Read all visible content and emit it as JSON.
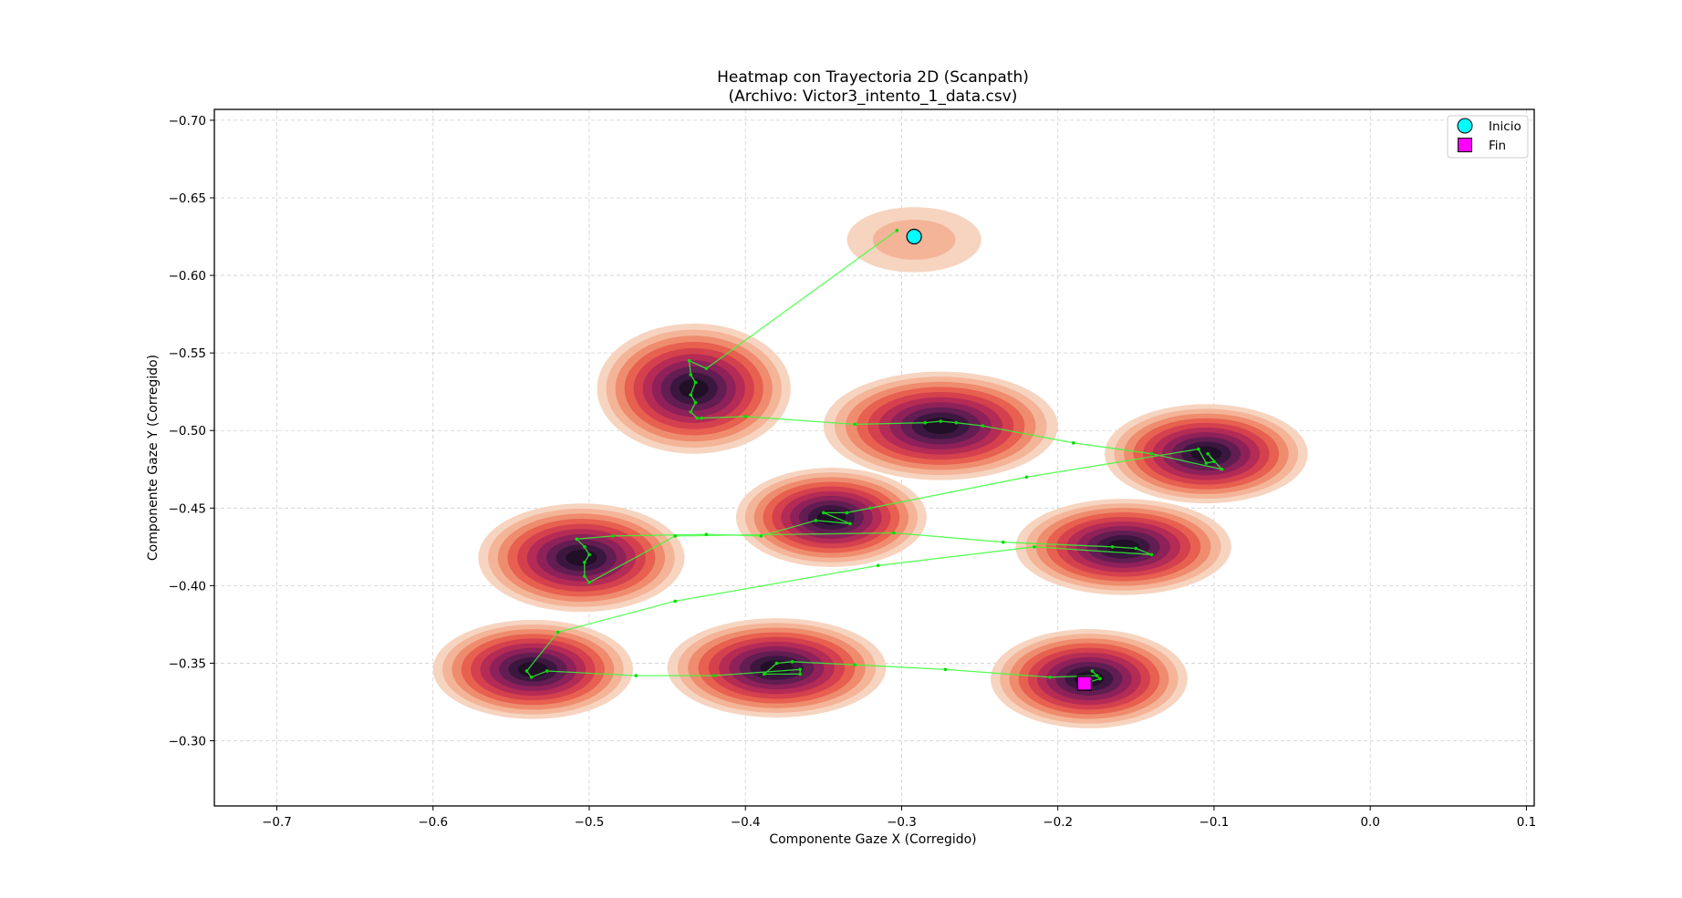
{
  "chart_data": {
    "type": "heatmap",
    "title": "Heatmap con Trayectoria 2D (Scanpath)",
    "subtitle": "(Archivo: Victor3_intento_1_data.csv)",
    "xlabel": "Componente Gaze X (Corregido)",
    "ylabel": "Componente Gaze Y (Corregido)",
    "xlim": [
      -0.74,
      0.105
    ],
    "ylim": [
      -0.258,
      -0.707
    ],
    "y_inverted": true,
    "grid": true,
    "x_ticks": [
      -0.7,
      -0.6,
      -0.5,
      -0.4,
      -0.3,
      -0.2,
      -0.1,
      0.0,
      0.1
    ],
    "x_tick_labels": [
      "−0.7",
      "−0.6",
      "−0.5",
      "−0.4",
      "−0.3",
      "−0.2",
      "−0.1",
      "0.0",
      "0.1"
    ],
    "y_ticks": [
      -0.7,
      -0.65,
      -0.6,
      -0.55,
      -0.5,
      -0.45,
      -0.4,
      -0.35,
      -0.3
    ],
    "y_tick_labels": [
      "−0.70",
      "−0.65",
      "−0.60",
      "−0.55",
      "−0.50",
      "−0.45",
      "−0.40",
      "−0.35",
      "−0.30"
    ],
    "legend": {
      "placement": "upper right",
      "entries": [
        {
          "label": "Inicio",
          "marker": "circle",
          "color": "#00ffff"
        },
        {
          "label": "Fin",
          "marker": "square",
          "color": "#ff00ff"
        }
      ]
    },
    "density_colors": [
      "#f6d4c0",
      "#f4b498",
      "#ef8c6e",
      "#e8604f",
      "#d5404e",
      "#b42b55",
      "#8e2159",
      "#621d52",
      "#3b1740",
      "#200f27"
    ],
    "fixation_clusters": [
      {
        "x": -0.292,
        "y": -0.623,
        "rx": 0.043,
        "ry": 0.021,
        "levels": 2
      },
      {
        "x": -0.433,
        "y": -0.527,
        "rx": 0.062,
        "ry": 0.042,
        "levels": 10
      },
      {
        "x": -0.275,
        "y": -0.503,
        "rx": 0.075,
        "ry": 0.035,
        "levels": 10
      },
      {
        "x": -0.105,
        "y": -0.485,
        "rx": 0.065,
        "ry": 0.032,
        "levels": 10
      },
      {
        "x": -0.345,
        "y": -0.444,
        "rx": 0.061,
        "ry": 0.032,
        "levels": 10
      },
      {
        "x": -0.158,
        "y": -0.425,
        "rx": 0.069,
        "ry": 0.031,
        "levels": 10
      },
      {
        "x": -0.505,
        "y": -0.418,
        "rx": 0.066,
        "ry": 0.035,
        "levels": 10
      },
      {
        "x": -0.536,
        "y": -0.346,
        "rx": 0.064,
        "ry": 0.032,
        "levels": 10
      },
      {
        "x": -0.38,
        "y": -0.347,
        "rx": 0.07,
        "ry": 0.032,
        "levels": 10
      },
      {
        "x": -0.18,
        "y": -0.34,
        "rx": 0.063,
        "ry": 0.032,
        "levels": 10
      }
    ],
    "scanpath": {
      "color": "#33ff33",
      "points": [
        [
          -0.303,
          -0.629
        ],
        [
          -0.425,
          -0.54
        ],
        [
          -0.436,
          -0.545
        ],
        [
          -0.435,
          -0.536
        ],
        [
          -0.432,
          -0.531
        ],
        [
          -0.435,
          -0.523
        ],
        [
          -0.432,
          -0.518
        ],
        [
          -0.435,
          -0.512
        ],
        [
          -0.431,
          -0.508
        ],
        [
          -0.428,
          -0.508
        ],
        [
          -0.4,
          -0.509
        ],
        [
          -0.33,
          -0.504
        ],
        [
          -0.285,
          -0.505
        ],
        [
          -0.275,
          -0.506
        ],
        [
          -0.265,
          -0.505
        ],
        [
          -0.248,
          -0.503
        ],
        [
          -0.19,
          -0.492
        ],
        [
          -0.14,
          -0.485
        ],
        [
          -0.095,
          -0.475
        ],
        [
          -0.104,
          -0.485
        ],
        [
          -0.1,
          -0.48
        ],
        [
          -0.105,
          -0.479
        ],
        [
          -0.11,
          -0.488
        ],
        [
          -0.22,
          -0.47
        ],
        [
          -0.32,
          -0.45
        ],
        [
          -0.335,
          -0.447
        ],
        [
          -0.35,
          -0.447
        ],
        [
          -0.333,
          -0.44
        ],
        [
          -0.355,
          -0.442
        ],
        [
          -0.39,
          -0.432
        ],
        [
          -0.425,
          -0.433
        ],
        [
          -0.485,
          -0.432
        ],
        [
          -0.508,
          -0.43
        ],
        [
          -0.503,
          -0.425
        ],
        [
          -0.5,
          -0.42
        ],
        [
          -0.503,
          -0.415
        ],
        [
          -0.503,
          -0.406
        ],
        [
          -0.5,
          -0.402
        ],
        [
          -0.445,
          -0.432
        ],
        [
          -0.305,
          -0.434
        ],
        [
          -0.235,
          -0.428
        ],
        [
          -0.165,
          -0.425
        ],
        [
          -0.15,
          -0.424
        ],
        [
          -0.14,
          -0.42
        ],
        [
          -0.215,
          -0.425
        ],
        [
          -0.315,
          -0.413
        ],
        [
          -0.445,
          -0.39
        ],
        [
          -0.52,
          -0.37
        ],
        [
          -0.54,
          -0.345
        ],
        [
          -0.537,
          -0.341
        ],
        [
          -0.527,
          -0.345
        ],
        [
          -0.47,
          -0.342
        ],
        [
          -0.42,
          -0.342
        ],
        [
          -0.365,
          -0.346
        ],
        [
          -0.365,
          -0.343
        ],
        [
          -0.388,
          -0.343
        ],
        [
          -0.38,
          -0.35
        ],
        [
          -0.37,
          -0.351
        ],
        [
          -0.33,
          -0.349
        ],
        [
          -0.272,
          -0.346
        ],
        [
          -0.205,
          -0.341
        ],
        [
          -0.175,
          -0.342
        ],
        [
          -0.178,
          -0.345
        ],
        [
          -0.173,
          -0.34
        ],
        [
          -0.183,
          -0.337
        ]
      ]
    },
    "start_point": {
      "x": -0.292,
      "y": -0.625,
      "label": "Inicio"
    },
    "end_point": {
      "x": -0.183,
      "y": -0.337,
      "label": "Fin"
    }
  }
}
